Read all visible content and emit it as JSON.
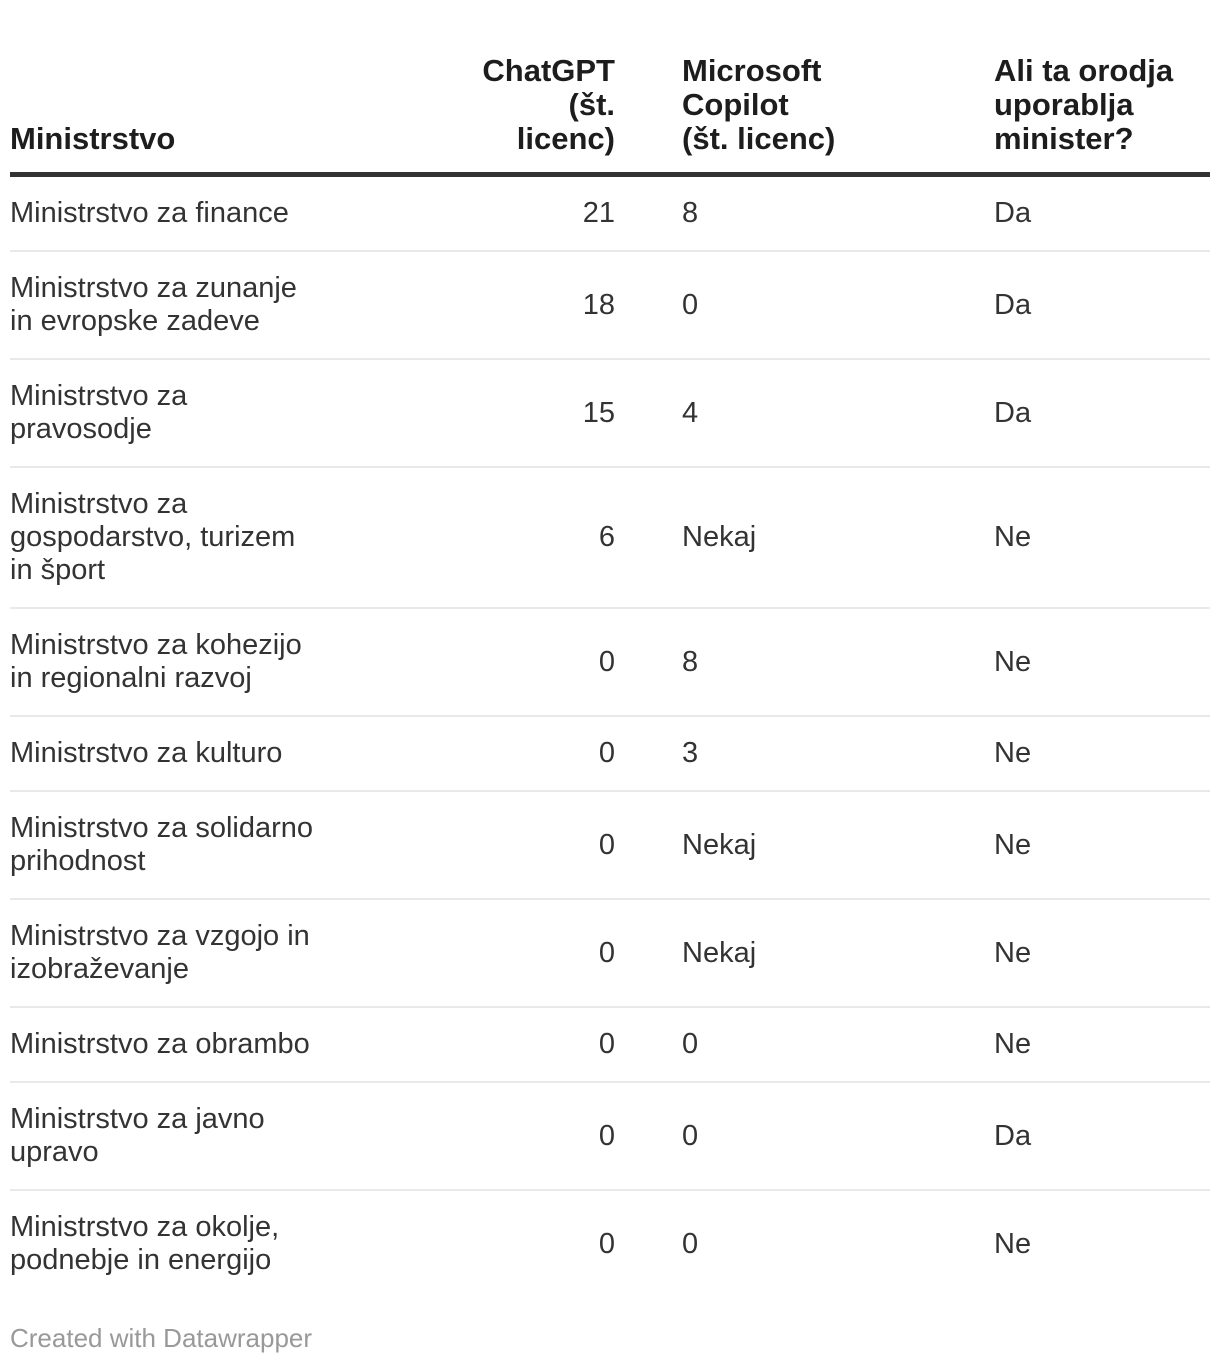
{
  "chart_data": {
    "type": "table",
    "columns": [
      "Ministrstvo",
      "ChatGPT (št. licenc)",
      "Microsoft Copilot (št. licenc)",
      "Ali ta orodja uporablja minister?"
    ],
    "rows": [
      [
        "Ministrstvo za finance",
        21,
        "8",
        "Da"
      ],
      [
        "Ministrstvo za zunanje in evropske zadeve",
        18,
        "0",
        "Da"
      ],
      [
        "Ministrstvo za pravosodje",
        15,
        "4",
        "Da"
      ],
      [
        "Ministrstvo za gospodarstvo, turizem in šport",
        6,
        "Nekaj",
        "Ne"
      ],
      [
        "Ministrstvo za kohezijo in regionalni razvoj",
        0,
        "8",
        "Ne"
      ],
      [
        "Ministrstvo za kulturo",
        0,
        "3",
        "Ne"
      ],
      [
        "Ministrstvo za solidarno prihodnost",
        0,
        "Nekaj",
        "Ne"
      ],
      [
        "Ministrstvo za vzgojo in izobraževanje",
        0,
        "Nekaj",
        "Ne"
      ],
      [
        "Ministrstvo za obrambo",
        0,
        "0",
        "Ne"
      ],
      [
        "Ministrstvo za javno upravo",
        0,
        "0",
        "Da"
      ],
      [
        "Ministrstvo za okolje, podnebje in energijo",
        0,
        "0",
        "Ne"
      ]
    ],
    "title": "",
    "legend_position": "none",
    "grid": "row-separators"
  },
  "table": {
    "columns": [
      {
        "display": "Ministrstvo",
        "align": "left"
      },
      {
        "display": "ChatGPT (št.\nlicenc)",
        "align": "right"
      },
      {
        "display": "Microsoft Copilot\n(št. licenc)",
        "align": "left"
      },
      {
        "display": "Ali ta orodja\nuporablja\nminister?",
        "align": "left"
      }
    ],
    "rows": [
      {
        "ministry": "Ministrstvo za finance",
        "chatgpt": "21",
        "copilot": "8",
        "minister": "Da"
      },
      {
        "ministry": "Ministrstvo za zunanje\nin evropske zadeve",
        "chatgpt": "18",
        "copilot": "0",
        "minister": "Da"
      },
      {
        "ministry": "Ministrstvo za\npravosodje",
        "chatgpt": "15",
        "copilot": "4",
        "minister": "Da"
      },
      {
        "ministry": "Ministrstvo za\ngospodarstvo, turizem\nin šport",
        "chatgpt": "6",
        "copilot": "Nekaj",
        "minister": "Ne"
      },
      {
        "ministry": "Ministrstvo za kohezijo\nin regionalni razvoj",
        "chatgpt": "0",
        "copilot": "8",
        "minister": "Ne"
      },
      {
        "ministry": "Ministrstvo za kulturo",
        "chatgpt": "0",
        "copilot": "3",
        "minister": "Ne"
      },
      {
        "ministry": "Ministrstvo za solidarno\nprihodnost",
        "chatgpt": "0",
        "copilot": "Nekaj",
        "minister": "Ne"
      },
      {
        "ministry": "Ministrstvo za vzgojo in\nizobraževanje",
        "chatgpt": "0",
        "copilot": "Nekaj",
        "minister": "Ne"
      },
      {
        "ministry": "Ministrstvo za obrambo",
        "chatgpt": "0",
        "copilot": "0",
        "minister": "Ne"
      },
      {
        "ministry": "Ministrstvo za javno\nupravo",
        "chatgpt": "0",
        "copilot": "0",
        "minister": "Da"
      },
      {
        "ministry": "Ministrstvo za okolje,\npodnebje in energijo",
        "chatgpt": "0",
        "copilot": "0",
        "minister": "Ne"
      }
    ]
  },
  "footer": {
    "credit": "Created with Datawrapper"
  },
  "colors": {
    "background": "#ffffff",
    "body_text": "#333333",
    "header_text": "#1d1d1d",
    "header_rule": "#333333",
    "row_separator": "#e9e9e9",
    "credit_text": "#999999"
  }
}
